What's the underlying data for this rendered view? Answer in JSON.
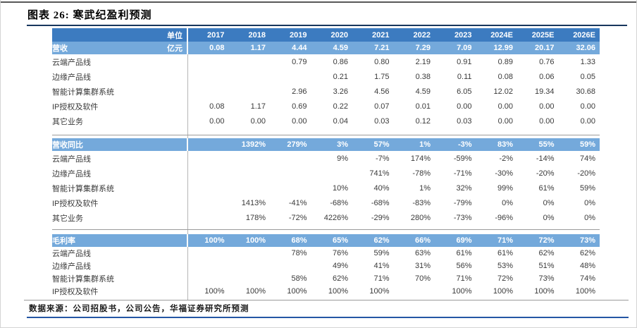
{
  "page": {
    "title": "图表 26: 寒武纪盈利预测",
    "source_note": "数据来源：公司招股书，公司公告，华福证券研究所预测"
  },
  "colors": {
    "header_blue": "#3c7bc0",
    "subheader_blue": "#74a9db",
    "title_rule_navy": "#17375e",
    "footer_rule_blue": "#2456a4",
    "section_rule_gray": "#9b9b9b"
  },
  "table": {
    "unit_label": "单位",
    "years": [
      "2017",
      "2018",
      "2019",
      "2020",
      "2021",
      "2022",
      "2023",
      "2024E",
      "2025E",
      "2026E"
    ],
    "sections": [
      {
        "header": {
          "label": "营收",
          "unit": "亿元",
          "values": [
            "0.08",
            "1.17",
            "4.44",
            "4.59",
            "7.21",
            "7.29",
            "7.09",
            "12.99",
            "20.17",
            "32.06"
          ]
        },
        "rows": [
          {
            "label": "云端产品线",
            "values": [
              "",
              "",
              "0.79",
              "0.86",
              "0.80",
              "2.19",
              "0.91",
              "0.89",
              "0.76",
              "1.33"
            ]
          },
          {
            "label": "边缘产品线",
            "values": [
              "",
              "",
              "",
              "0.21",
              "1.75",
              "0.38",
              "0.11",
              "0.08",
              "0.06",
              "0.05"
            ]
          },
          {
            "label": "智能计算集群系统",
            "values": [
              "",
              "",
              "2.96",
              "3.26",
              "4.56",
              "4.59",
              "6.05",
              "12.02",
              "19.34",
              "30.68"
            ]
          },
          {
            "label": "IP授权及软件",
            "values": [
              "0.08",
              "1.17",
              "0.69",
              "0.22",
              "0.07",
              "0.01",
              "0.00",
              "0.00",
              "0.00",
              "0.00"
            ]
          },
          {
            "label": "其它业务",
            "values": [
              "0.00",
              "0.00",
              "0.00",
              "0.04",
              "0.03",
              "0.12",
              "0.03",
              "0.00",
              "0.00",
              "0.00"
            ]
          }
        ]
      },
      {
        "header": {
          "label": "营收同比",
          "unit": "",
          "values": [
            "",
            "1392%",
            "279%",
            "3%",
            "57%",
            "1%",
            "-3%",
            "83%",
            "55%",
            "59%"
          ]
        },
        "rows": [
          {
            "label": "云端产品线",
            "values": [
              "",
              "",
              "",
              "9%",
              "-7%",
              "174%",
              "-59%",
              "-2%",
              "-14%",
              "74%"
            ]
          },
          {
            "label": "边缘产品线",
            "values": [
              "",
              "",
              "",
              "",
              "741%",
              "-78%",
              "-71%",
              "-30%",
              "-20%",
              "-20%"
            ]
          },
          {
            "label": "智能计算集群系统",
            "values": [
              "",
              "",
              "",
              "10%",
              "40%",
              "1%",
              "32%",
              "99%",
              "61%",
              "59%"
            ]
          },
          {
            "label": "IP授权及软件",
            "values": [
              "",
              "1413%",
              "-41%",
              "-68%",
              "-68%",
              "-83%",
              "-79%",
              "0%",
              "0%",
              "0%"
            ]
          },
          {
            "label": "其它业务",
            "values": [
              "",
              "178%",
              "-72%",
              "4226%",
              "-29%",
              "280%",
              "-73%",
              "-96%",
              "0%",
              "0%"
            ]
          }
        ]
      },
      {
        "header": {
          "label": "毛利率",
          "unit": "",
          "values": [
            "100%",
            "100%",
            "68%",
            "65%",
            "62%",
            "66%",
            "69%",
            "71%",
            "72%",
            "73%"
          ]
        },
        "rows": [
          {
            "label": "云端产品线",
            "values": [
              "",
              "",
              "78%",
              "76%",
              "59%",
              "63%",
              "61%",
              "61%",
              "62%",
              "62%"
            ]
          },
          {
            "label": "边缘产品线",
            "values": [
              "",
              "",
              "",
              "49%",
              "41%",
              "31%",
              "56%",
              "53%",
              "51%",
              "48%"
            ]
          },
          {
            "label": "智能计算集群系统",
            "values": [
              "",
              "",
              "58%",
              "62%",
              "71%",
              "70%",
              "71%",
              "72%",
              "73%",
              "74%"
            ]
          },
          {
            "label": "IP授权及软件",
            "values": [
              "100%",
              "100%",
              "100%",
              "100%",
              "100%",
              "",
              "100%",
              "100%",
              "100%",
              "100%"
            ]
          }
        ]
      }
    ]
  }
}
